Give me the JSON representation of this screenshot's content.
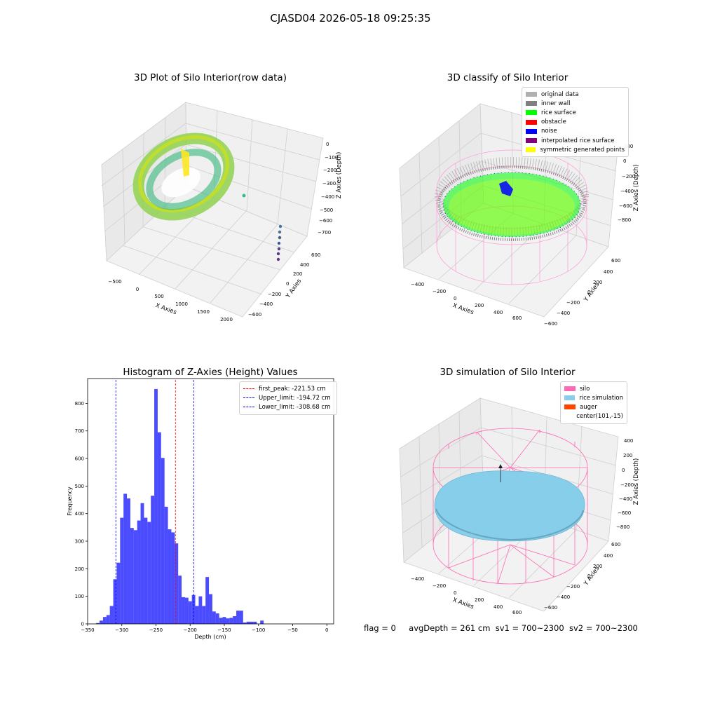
{
  "figure": {
    "suptitle": "CJASD04 2026-05-18 09:25:35",
    "footer": {
      "flag": "flag = 0",
      "avg_depth": "avgDepth = 261 cm",
      "sv1": "sv1 = 700~2300",
      "sv2": "sv2 = 700~2300"
    }
  },
  "panels": {
    "raw": {
      "title": "3D Plot of Silo Interior(row data)",
      "xlabel": "X Axies",
      "ylabel": "Y Axies",
      "zlabel": "Z Axies (Depth)",
      "xticks": [
        "−500",
        "0",
        "500",
        "1000",
        "1500",
        "2000"
      ],
      "yticks": [
        "600",
        "400",
        "200",
        "0",
        "−200",
        "−400",
        "−600"
      ],
      "zticks": [
        "0",
        "−100",
        "−200",
        "−300",
        "−400",
        "−500",
        "−600",
        "−700"
      ]
    },
    "classify": {
      "title": "3D classify of Silo Interior",
      "xlabel": "X Axies",
      "ylabel": "Y Axies",
      "zlabel": "Z Axies (Depth)",
      "xticks": [
        "−400",
        "−200",
        "0",
        "200",
        "400",
        "600"
      ],
      "yticks": [
        "600",
        "400",
        "200",
        "0",
        "−200",
        "−400",
        "−600"
      ],
      "zticks": [
        "200",
        "0",
        "−200",
        "−400",
        "−600",
        "−800"
      ],
      "legend": [
        {
          "label": "original data",
          "color": "#b0b0b0"
        },
        {
          "label": "inner wall",
          "color": "#808080"
        },
        {
          "label": "rice surface",
          "color": "#00ff00"
        },
        {
          "label": "obstacle",
          "color": "#ff0000"
        },
        {
          "label": "noise",
          "color": "#0000ff"
        },
        {
          "label": "interpolated rice surface",
          "color": "#800080"
        },
        {
          "label": "symmetric generated points",
          "color": "#ffff00"
        }
      ]
    },
    "simulation": {
      "title": "3D simulation of Silo Interior",
      "xlabel": "X Axies",
      "ylabel": "Y Axies",
      "zlabel": "Z Axies (Depth)",
      "xticks": [
        "−400",
        "−200",
        "0",
        "200",
        "400",
        "600"
      ],
      "yticks": [
        "600",
        "400",
        "200",
        "0",
        "−200",
        "−400",
        "−600"
      ],
      "zticks": [
        "400",
        "200",
        "0",
        "−200",
        "−400",
        "−600",
        "−800"
      ],
      "legend": [
        {
          "label": "silo",
          "color": "#ff69b4"
        },
        {
          "label": "rice simulation",
          "color": "#87ceeb"
        },
        {
          "label": "auger",
          "color": "#ff4500"
        },
        {
          "label": "center(101,-15)",
          "color": ""
        }
      ]
    }
  },
  "chart_data": [
    {
      "type": "bar",
      "title": "Histogram of Z-Axies (Height) Values",
      "xlabel": "Depth (cm)",
      "ylabel": "Frequency",
      "xlim": [
        -350,
        10
      ],
      "ylim": [
        0,
        890
      ],
      "xticks": [
        -350,
        -300,
        -250,
        -200,
        -150,
        -100,
        -50,
        0
      ],
      "yticks": [
        0,
        100,
        200,
        300,
        400,
        500,
        600,
        700,
        800
      ],
      "bar_color": "#0000ff",
      "bin_edges_start": -337.5,
      "bin_width": 5,
      "values": [
        3,
        12,
        25,
        32,
        65,
        162,
        222,
        385,
        472,
        455,
        348,
        340,
        375,
        438,
        385,
        370,
        465,
        852,
        695,
        602,
        425,
        343,
        332,
        292,
        175,
        97,
        95,
        82,
        105,
        65,
        100,
        65,
        170,
        108,
        45,
        38,
        22,
        25,
        20,
        22,
        28,
        48,
        48,
        5,
        8,
        8,
        8,
        0,
        12
      ],
      "vlines": [
        {
          "label": "first_peak: -221.53 cm",
          "x": -221.53,
          "color": "#ff0000"
        },
        {
          "label": "Upper_limit: -194.72 cm",
          "x": -194.72,
          "color": "#0000ff"
        },
        {
          "label": "Lower_limit: -308.68 cm",
          "x": -308.68,
          "color": "#0000ff"
        }
      ],
      "legend_position": "upper right"
    }
  ]
}
